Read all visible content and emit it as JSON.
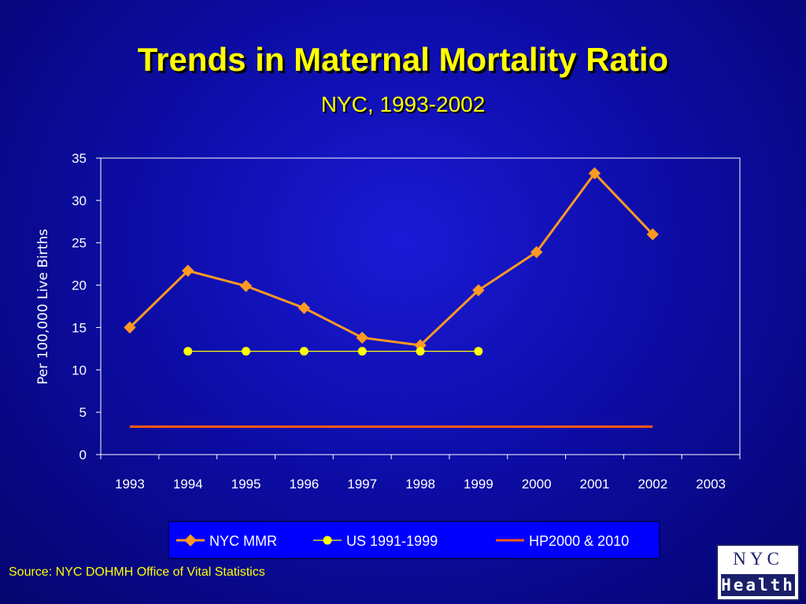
{
  "slide": {
    "title": "Trends in Maternal Mortality Ratio",
    "subtitle": "NYC, 1993-2002",
    "source": "Source:  NYC DOHMH Office of Vital Statistics",
    "logo_top": "NYC",
    "logo_bottom": "Health"
  },
  "colors": {
    "background": "#0d0da8",
    "title": "#ffff00",
    "nyc_mmr": "#ff9922",
    "us": "#ffff00",
    "hp": "#ff5a10",
    "axis": "#ffffff"
  },
  "chart_data": {
    "type": "line",
    "title": "",
    "xlabel": "",
    "ylabel": "Per 100,000 Live Births",
    "categories": [
      "1993",
      "1994",
      "1995",
      "1996",
      "1997",
      "1998",
      "1999",
      "2000",
      "2001",
      "2002",
      "2003"
    ],
    "yticks": [
      "0",
      "5",
      "10",
      "15",
      "20",
      "25",
      "30",
      "35"
    ],
    "ylim": [
      0,
      35
    ],
    "grid": false,
    "legend_position": "bottom",
    "series": [
      {
        "name": "NYC MMR",
        "marker": "diamond",
        "color": "#ff9922",
        "x": [
          "1993",
          "1994",
          "1995",
          "1996",
          "1997",
          "1998",
          "1999",
          "2000",
          "2001",
          "2002"
        ],
        "values": [
          15.0,
          21.7,
          19.9,
          17.3,
          13.8,
          12.9,
          19.4,
          23.9,
          33.2,
          26.0
        ]
      },
      {
        "name": "US 1991-1999",
        "marker": "circle",
        "color": "#ffff00",
        "x": [
          "1994",
          "1995",
          "1996",
          "1997",
          "1998",
          "1999"
        ],
        "values": [
          12.2,
          12.2,
          12.2,
          12.2,
          12.2,
          12.2
        ]
      },
      {
        "name": "HP2000 & 2010",
        "marker": "none",
        "color": "#ff5a10",
        "x": [
          "1993",
          "1994",
          "1995",
          "1996",
          "1997",
          "1998",
          "1999",
          "2000",
          "2001",
          "2002"
        ],
        "values": [
          3.3,
          3.3,
          3.3,
          3.3,
          3.3,
          3.3,
          3.3,
          3.3,
          3.3,
          3.3
        ]
      }
    ]
  }
}
